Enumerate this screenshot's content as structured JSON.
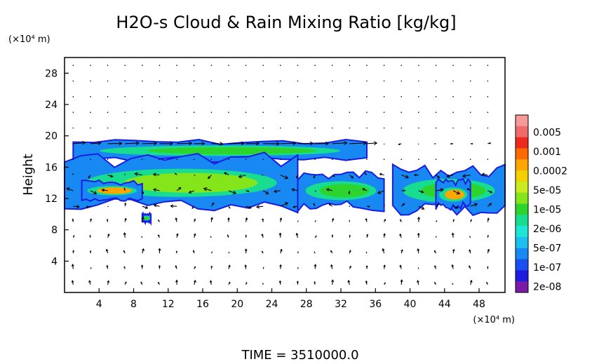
{
  "chart_data": {
    "type": "heatmap",
    "title": "H2O-s Cloud & Rain Mixing Ratio [kg/kg]",
    "xlabel": "(×10⁴ m)",
    "ylabel": "Height",
    "y_unit_label": "(×10⁴ m)",
    "x_ticks": [
      "4",
      "8",
      "12",
      "16",
      "20",
      "24",
      "28",
      "32",
      "36",
      "40",
      "44",
      "48"
    ],
    "x_tick_values": [
      4,
      8,
      12,
      16,
      20,
      24,
      28,
      32,
      36,
      40,
      44,
      48
    ],
    "y_ticks": [
      "4",
      "8",
      "12",
      "16",
      "20",
      "24",
      "28"
    ],
    "y_tick_values": [
      4,
      8,
      12,
      16,
      20,
      24,
      28
    ],
    "xlim": [
      0,
      51
    ],
    "ylim": [
      0,
      30
    ],
    "time_label": "TIME  =  3510000.0",
    "colorbar": {
      "labels": [
        "0.005",
        "0.001",
        "0.0002",
        "5e-05",
        "1e-05",
        "2e-06",
        "5e-07",
        "1e-07",
        "2e-08"
      ],
      "colors": [
        "#f79a9a",
        "#f26b6b",
        "#ee2a1e",
        "#ff6a00",
        "#ffa600",
        "#f5d000",
        "#c8ec1e",
        "#84e61a",
        "#2ed42e",
        "#18dc90",
        "#1ee6d6",
        "#1cc0f0",
        "#1888f2",
        "#1a4ef0",
        "#1c1ce0",
        "#7a1aa6"
      ]
    },
    "cloud_band": [
      {
        "x": [
          1,
          35
        ],
        "y": [
          17,
          19.2
        ],
        "level": "1e-05"
      },
      {
        "x": [
          0,
          27
        ],
        "y": [
          11,
          17
        ],
        "level": "5e-05"
      },
      {
        "x": [
          27,
          37
        ],
        "y": [
          11,
          15
        ],
        "level": "1e-05"
      },
      {
        "x": [
          38,
          51
        ],
        "y": [
          10.5,
          15.5
        ],
        "level": "1e-05"
      },
      {
        "x": [
          43,
          47
        ],
        "y": [
          11,
          14
        ],
        "level": "0.0002"
      },
      {
        "x": [
          2,
          9
        ],
        "y": [
          12,
          14
        ],
        "level": "0.0002"
      },
      {
        "x": [
          9,
          10
        ],
        "y": [
          9,
          10
        ],
        "level": "1e-05"
      }
    ]
  }
}
